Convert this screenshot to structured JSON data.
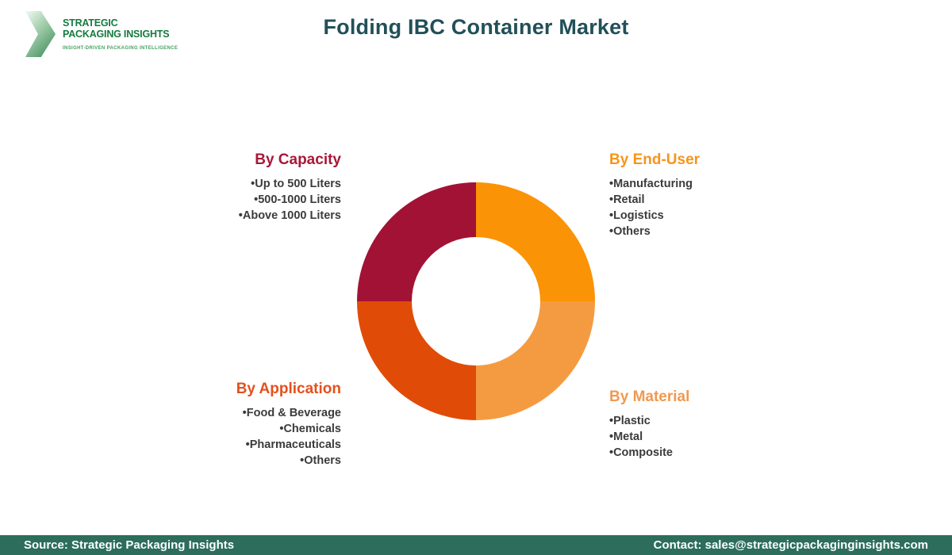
{
  "header": {
    "logo": {
      "line1": "STRATEGIC",
      "line2": "PACKAGING INSIGHTS",
      "tagline": "INSIGHT-DRIVEN PACKAGING INTELLIGENCE",
      "text_color": "#157A3E",
      "tagline_color": "#45A160"
    },
    "title": "Folding IBC Container Market",
    "title_color": "#215058"
  },
  "legends": {
    "capacity": {
      "heading": "By Capacity",
      "color": "#A81838",
      "items": [
        "Up to 500 Liters",
        "500-1000 Liters",
        "Above 1000 Liters"
      ]
    },
    "end_user": {
      "heading": "By End-User",
      "color": "#F7941D",
      "items": [
        "Manufacturing",
        "Retail",
        "Logistics",
        "Others"
      ]
    },
    "application": {
      "heading": "By Application",
      "color": "#E4501C",
      "items": [
        "Food & Beverage",
        "Chemicals",
        "Pharmaceuticals",
        "Others"
      ]
    },
    "material": {
      "heading": "By Material",
      "color": "#F0994F",
      "items": [
        "Plastic",
        "Metal",
        "Composite"
      ]
    }
  },
  "chart_data": {
    "type": "pie",
    "subtype": "donut",
    "title": "Folding IBC Container Market",
    "legend_position": "four-corners",
    "inner_radius_ratio": 0.54,
    "segments": [
      {
        "label": "By End-User",
        "value": 25,
        "color": "#FB9306",
        "quadrant": "top-right"
      },
      {
        "label": "By Material",
        "value": 25,
        "color": "#F49B42",
        "quadrant": "bottom-right"
      },
      {
        "label": "By Application",
        "value": 25,
        "color": "#E04C07",
        "quadrant": "bottom-left"
      },
      {
        "label": "By Capacity",
        "value": 25,
        "color": "#A21235",
        "quadrant": "top-left"
      }
    ]
  },
  "footer": {
    "bg_color": "#2C6D5C",
    "text_color": "#FFFFFF",
    "source": "Source: Strategic Packaging Insights",
    "contact": "Contact: sales@strategicpackaginginsights.com"
  }
}
